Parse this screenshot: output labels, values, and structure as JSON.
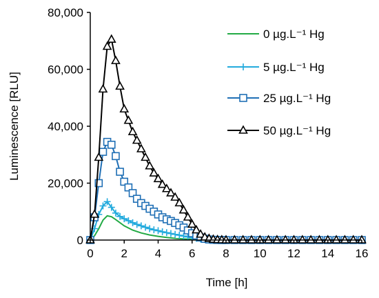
{
  "chart_data": {
    "type": "line",
    "title": "",
    "xlabel": "Time [h]",
    "ylabel": "Luminescence [RLU]",
    "xlim": [
      0,
      16
    ],
    "ylim": [
      0,
      80000
    ],
    "xticks": [
      0,
      2,
      4,
      6,
      8,
      10,
      12,
      14,
      16
    ],
    "yticks": [
      0,
      20000,
      40000,
      60000,
      80000
    ],
    "xtick_labels": [
      "0",
      "2",
      "4",
      "6",
      "8",
      "10",
      "12",
      "14",
      "16"
    ],
    "ytick_labels": [
      "0",
      "20,000",
      "40,000",
      "60,000",
      "80,000"
    ],
    "grid": false,
    "legend_position": "top-right",
    "series": [
      {
        "name": "0 µg.L⁻¹ Hg",
        "color": "#22aa44",
        "marker": "none",
        "x": [
          0,
          0.25,
          0.5,
          0.75,
          1,
          1.25,
          1.5,
          2,
          2.5,
          3,
          3.5,
          4,
          4.5,
          5,
          5.5,
          6,
          6.5,
          7,
          8,
          9,
          10,
          11,
          12,
          13,
          14,
          15,
          16
        ],
        "y": [
          0,
          1500,
          4000,
          7000,
          8500,
          8200,
          7200,
          5000,
          3500,
          2500,
          1800,
          1300,
          900,
          600,
          400,
          250,
          150,
          80,
          20,
          0,
          0,
          0,
          0,
          0,
          0,
          0,
          0
        ]
      },
      {
        "name": "5 µg.L⁻¹ Hg",
        "color": "#22aadd",
        "marker": "plus",
        "x": [
          0,
          0.25,
          0.5,
          0.75,
          1,
          1.25,
          1.5,
          1.75,
          2,
          2.25,
          2.5,
          2.75,
          3,
          3.25,
          3.5,
          3.75,
          4,
          4.25,
          4.5,
          4.75,
          5,
          5.25,
          5.5,
          5.75,
          6,
          6.25,
          6.5,
          6.75,
          7,
          7.25,
          7.5,
          7.75,
          8,
          8.5,
          9,
          9.5,
          10,
          10.5,
          11,
          11.5,
          12,
          12.5,
          13,
          13.5,
          14,
          14.5,
          15,
          15.5,
          16
        ],
        "y": [
          0,
          4000,
          9000,
          12000,
          13500,
          11500,
          9500,
          8300,
          7500,
          6800,
          6100,
          5500,
          5000,
          4500,
          4000,
          3600,
          3300,
          2900,
          2600,
          2300,
          2000,
          1700,
          1400,
          1100,
          800,
          600,
          400,
          250,
          150,
          80,
          40,
          15,
          0,
          0,
          0,
          0,
          0,
          0,
          0,
          0,
          0,
          0,
          0,
          0,
          0,
          0,
          0,
          0,
          0
        ]
      },
      {
        "name": "25 µg.L⁻¹ Hg",
        "color": "#1f6fb5",
        "marker": "square",
        "x": [
          0,
          0.25,
          0.5,
          0.75,
          1,
          1.25,
          1.5,
          1.75,
          2,
          2.25,
          2.5,
          2.75,
          3,
          3.25,
          3.5,
          3.75,
          4,
          4.25,
          4.5,
          4.75,
          5,
          5.25,
          5.5,
          5.75,
          6,
          6.25,
          6.5,
          6.75,
          7,
          7.25,
          7.5,
          7.75,
          8,
          8.5,
          9,
          9.5,
          10,
          10.5,
          11,
          11.5,
          12,
          12.5,
          13,
          13.5,
          14,
          14.5,
          15,
          15.5,
          16
        ],
        "y": [
          0,
          8000,
          20000,
          31000,
          34500,
          33500,
          29500,
          24000,
          20500,
          18500,
          16500,
          14500,
          13000,
          12000,
          11000,
          10000,
          9000,
          8000,
          7300,
          6700,
          6000,
          5200,
          4400,
          3400,
          2400,
          1600,
          900,
          450,
          200,
          80,
          30,
          10,
          0,
          0,
          0,
          0,
          0,
          0,
          0,
          0,
          0,
          0,
          0,
          0,
          0,
          0,
          0,
          0,
          0
        ]
      },
      {
        "name": "50 µg.L⁻¹ Hg",
        "color": "#000000",
        "marker": "triangle",
        "x": [
          0,
          0.25,
          0.5,
          0.75,
          1,
          1.25,
          1.5,
          1.75,
          2,
          2.25,
          2.5,
          2.75,
          3,
          3.25,
          3.5,
          3.75,
          4,
          4.25,
          4.5,
          4.75,
          5,
          5.25,
          5.5,
          5.75,
          6,
          6.25,
          6.5,
          6.75,
          7,
          7.25,
          7.5,
          7.75,
          8,
          8.5,
          9,
          9.5,
          10,
          10.5,
          11,
          11.5,
          12,
          12.5,
          13,
          13.5,
          14,
          14.5,
          15,
          15.5,
          16
        ],
        "y": [
          0,
          9000,
          29000,
          53000,
          68000,
          70500,
          63000,
          54000,
          46000,
          42000,
          38000,
          35000,
          32000,
          29000,
          26000,
          23500,
          21500,
          19500,
          18000,
          16500,
          15000,
          13000,
          10500,
          8000,
          5500,
          3500,
          2000,
          1000,
          500,
          200,
          80,
          30,
          0,
          0,
          0,
          0,
          0,
          0,
          0,
          0,
          0,
          0,
          0,
          0,
          0,
          0,
          0,
          0,
          0
        ]
      }
    ]
  }
}
